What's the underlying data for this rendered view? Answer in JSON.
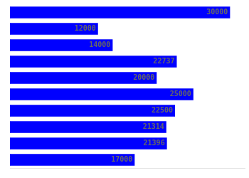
{
  "chart_data": {
    "type": "bar",
    "orientation": "horizontal",
    "categories": [
      null,
      null,
      null,
      null,
      null,
      null,
      null,
      null,
      null,
      null
    ],
    "values": [
      30000,
      12000,
      14000,
      22737,
      20000,
      25000,
      22500,
      21314,
      21396,
      17000
    ],
    "color": "#0000ff",
    "xlim": [
      0,
      32000
    ],
    "data_labels": true,
    "tick_labels": false,
    "grid": false
  }
}
